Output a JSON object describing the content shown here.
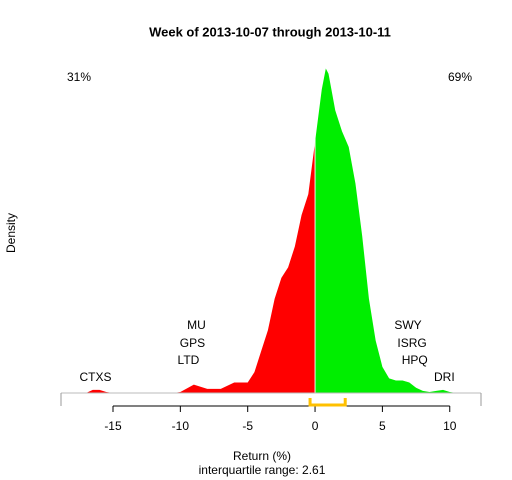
{
  "chart_data": {
    "type": "density",
    "title": "Week of 2013-10-07 through 2013-10-11",
    "x_label": "Return (%)",
    "y_label": "Density",
    "subtitle": "interquartile range: 2.61",
    "negative_share": {
      "text": "31%",
      "color": "#ff0000"
    },
    "positive_share": {
      "text": "69%",
      "color": "#00a000"
    },
    "negative_color": "#ff0000",
    "positive_color": "#00ee00",
    "iqr_color": "#ffc000",
    "iqr": [
      -0.37,
      2.24
    ],
    "xlim": [
      -18.86,
      12.32
    ],
    "ylim": [
      0,
      0.32
    ],
    "xticks": [
      -15,
      -10,
      -5,
      0,
      5,
      10
    ],
    "x": [
      -18,
      -17,
      -16.5,
      -16,
      -15.5,
      -15,
      -10.5,
      -10,
      -9,
      -8,
      -7,
      -6,
      -5,
      -4.5,
      -4,
      -3.5,
      -3,
      -2.5,
      -2,
      -1.5,
      -1,
      -0.5,
      0,
      0.5,
      0.8,
      1,
      1.5,
      2,
      2.5,
      3,
      3.5,
      4,
      4.5,
      5,
      5.5,
      6,
      6.5,
      7,
      7.5,
      8,
      8.5,
      9,
      9.5,
      10,
      10.5,
      11
    ],
    "values": [
      0,
      0,
      0.003,
      0.003,
      0.001,
      0,
      0,
      0.001,
      0.008,
      0.004,
      0.004,
      0.01,
      0.01,
      0.02,
      0.04,
      0.06,
      0.09,
      0.11,
      0.12,
      0.14,
      0.17,
      0.19,
      0.24,
      0.29,
      0.31,
      0.305,
      0.27,
      0.25,
      0.235,
      0.2,
      0.15,
      0.09,
      0.05,
      0.025,
      0.014,
      0.012,
      0.012,
      0.01,
      0.005,
      0.002,
      0.001,
      0.002,
      0.003,
      0.001,
      0,
      0
    ],
    "annotations": [
      {
        "text": "CTXS",
        "x": -16.3
      },
      {
        "text": "MU",
        "x": -8.8
      },
      {
        "text": "GPS",
        "x": -9.1
      },
      {
        "text": "LTD",
        "x": -9.4
      },
      {
        "text": "SWY",
        "x": 6.9
      },
      {
        "text": "ISRG",
        "x": 7.2
      },
      {
        "text": "HPQ",
        "x": 7.4
      },
      {
        "text": "DRI",
        "x": 9.6
      }
    ]
  }
}
